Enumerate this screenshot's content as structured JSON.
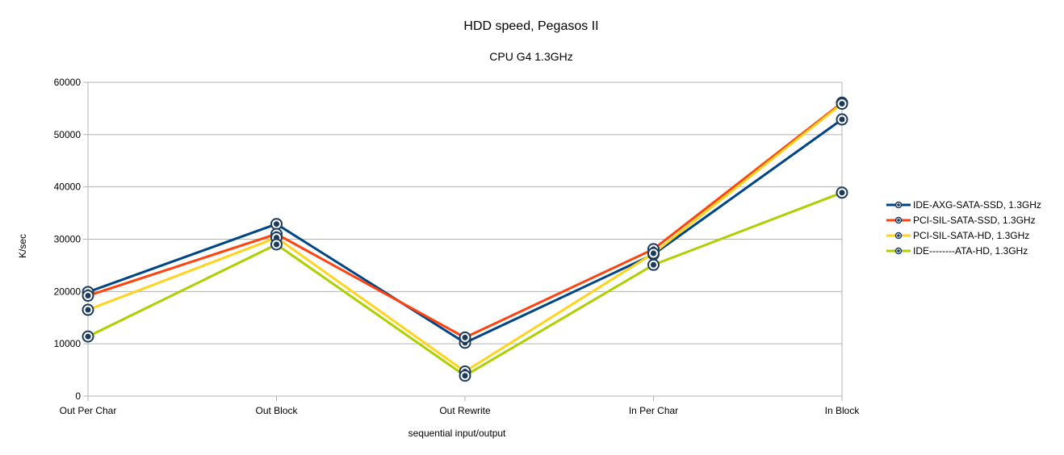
{
  "chart_data": {
    "type": "line",
    "title": "HDD speed, Pegasos II",
    "subtitle": "CPU G4  1.3GHz",
    "xlabel": "sequential input/output",
    "ylabel": "K/sec",
    "categories": [
      "Out Per Char",
      "Out Block",
      "Out Rewrite",
      "In Per Char",
      "In Block"
    ],
    "ylim": [
      0,
      60000
    ],
    "yticks": [
      "0",
      "10000",
      "20000",
      "30000",
      "40000",
      "50000",
      "60000"
    ],
    "grid": true,
    "legend_position": "right",
    "series": [
      {
        "name": "IDE-AXG-SATA-SSD, 1.3GHz",
        "color": "#004586",
        "values": [
          19900,
          32900,
          10200,
          27100,
          52900
        ]
      },
      {
        "name": "PCI-SIL-SATA-SSD, 1.3GHz",
        "color": "#ff420e",
        "values": [
          19200,
          31000,
          11200,
          28100,
          56100
        ]
      },
      {
        "name": "PCI-SIL-SATA-HD, 1.3GHz",
        "color": "#ffd320",
        "values": [
          16500,
          30300,
          4700,
          27300,
          55900
        ]
      },
      {
        "name": "IDE--------ATA-HD, 1.3GHz",
        "color": "#aecf00",
        "values": [
          11400,
          29000,
          3900,
          25100,
          38900
        ]
      }
    ]
  }
}
